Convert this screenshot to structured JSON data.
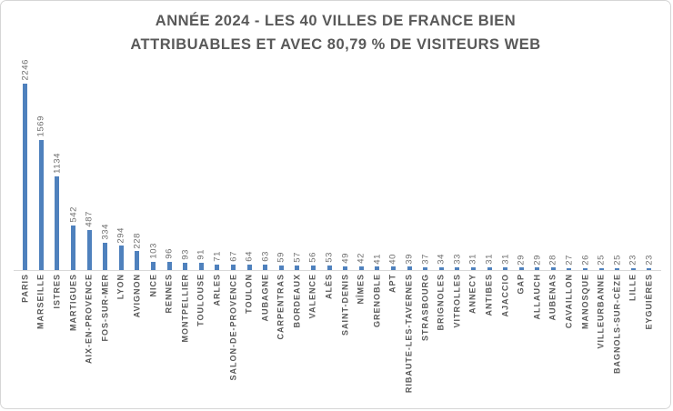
{
  "chart_data": {
    "type": "bar",
    "title": "ANNÉE 2024 - LES 40 VILLES DE FRANCE BIEN ATTRIBUABLES ET AVEC 80,79 % DE VISITEURS WEB",
    "title_lines": [
      "ANNÉE 2024 - LES 40 VILLES DE FRANCE BIEN",
      "ATTRIBUABLES ET AVEC 80,79 % DE VISITEURS WEB"
    ],
    "categories": [
      "PARIS",
      "MARSEILLE",
      "ISTRES",
      "MARTIGUES",
      "AIX-EN-PROVENCE",
      "FOS-SUR-MER",
      "LYON",
      "AVIGNON",
      "NICE",
      "RENNES",
      "MONTPELLIER",
      "TOULOUSE",
      "ARLES",
      "SALON-DE-PROVENCE",
      "TOULON",
      "AUBAGNE",
      "CARPENTRAS",
      "BORDEAUX",
      "VALENCE",
      "ALÈS",
      "SAINT-DENIS",
      "NÎMES",
      "GRENOBLE",
      "APT",
      "RIBAUTE-LES-TAVERNES",
      "STRASBOURG",
      "BRIGNOLES",
      "VITROLLES",
      "ANNECY",
      "ANTIBES",
      "AJACCIO",
      "GAP",
      "ALLAUCH",
      "AUBENAS",
      "CAVAILLON",
      "MANOSQUE",
      "VILLEURBANNE",
      "BAGNOLS-SUR-CÈZE",
      "LILLE",
      "EYGUIÈRES"
    ],
    "values": [
      2246,
      1569,
      1134,
      542,
      487,
      334,
      294,
      228,
      103,
      96,
      93,
      91,
      71,
      67,
      64,
      63,
      59,
      57,
      56,
      53,
      49,
      42,
      41,
      40,
      39,
      37,
      34,
      33,
      31,
      31,
      31,
      29,
      29,
      28,
      27,
      26,
      25,
      25,
      23,
      23
    ],
    "ylim": [
      0,
      2246
    ],
    "grid": false,
    "legend": "none",
    "bar_color": "#4f81bd",
    "axis_line_color": "#d9d9d9",
    "title_color": "#595959",
    "category_label_color": "#595959",
    "value_label_color": "#6e6e6e"
  }
}
